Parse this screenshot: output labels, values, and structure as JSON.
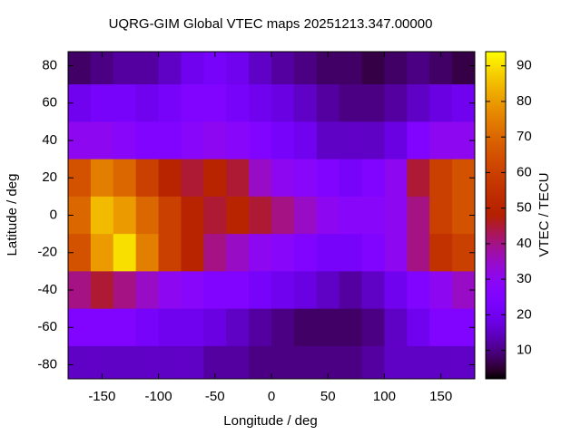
{
  "chart_data": {
    "type": "heatmap",
    "title": "UQRG-GIM Global VTEC maps 20251213.347.00000",
    "xlabel": "Longitude / deg",
    "ylabel": "Latitude / deg",
    "colorbar_label": "VTEC / TECU",
    "x": [
      -170,
      -150,
      -130,
      -110,
      -90,
      -70,
      -50,
      -30,
      -10,
      10,
      30,
      50,
      70,
      90,
      110,
      130,
      150,
      170
    ],
    "y": [
      80,
      60,
      40,
      20,
      0,
      -20,
      -40,
      -60,
      -80
    ],
    "values": [
      [
        8,
        10,
        12,
        12,
        15,
        20,
        22,
        20,
        15,
        12,
        10,
        8,
        8,
        6,
        8,
        10,
        8,
        6
      ],
      [
        20,
        22,
        22,
        20,
        22,
        25,
        25,
        22,
        20,
        18,
        15,
        12,
        10,
        10,
        12,
        15,
        18,
        20
      ],
      [
        30,
        30,
        28,
        25,
        25,
        28,
        30,
        28,
        25,
        22,
        20,
        15,
        15,
        15,
        18,
        25,
        30,
        30
      ],
      [
        65,
        75,
        70,
        60,
        50,
        45,
        50,
        45,
        35,
        30,
        28,
        25,
        22,
        25,
        30,
        45,
        60,
        65
      ],
      [
        70,
        85,
        80,
        70,
        60,
        50,
        45,
        50,
        45,
        40,
        35,
        30,
        28,
        28,
        30,
        40,
        60,
        65
      ],
      [
        65,
        80,
        90,
        75,
        60,
        50,
        40,
        35,
        30,
        28,
        25,
        22,
        22,
        25,
        30,
        40,
        55,
        60
      ],
      [
        40,
        45,
        40,
        35,
        30,
        28,
        25,
        25,
        22,
        20,
        18,
        15,
        12,
        15,
        20,
        25,
        30,
        35
      ],
      [
        25,
        25,
        25,
        22,
        20,
        20,
        18,
        15,
        12,
        10,
        8,
        8,
        8,
        10,
        15,
        20,
        25,
        25
      ],
      [
        15,
        15,
        15,
        15,
        15,
        15,
        12,
        12,
        10,
        10,
        10,
        10,
        10,
        12,
        15,
        15,
        15,
        15
      ]
    ],
    "xlim": [
      -180,
      180
    ],
    "ylim": [
      -87.5,
      87.5
    ],
    "xticks": [
      -150,
      -100,
      -50,
      0,
      50,
      100,
      150
    ],
    "yticks": [
      -80,
      -60,
      -40,
      -20,
      0,
      20,
      40,
      60,
      80
    ],
    "zlim": [
      2,
      94
    ],
    "zticks": [
      10,
      20,
      30,
      40,
      50,
      60,
      70,
      80,
      90
    ]
  }
}
